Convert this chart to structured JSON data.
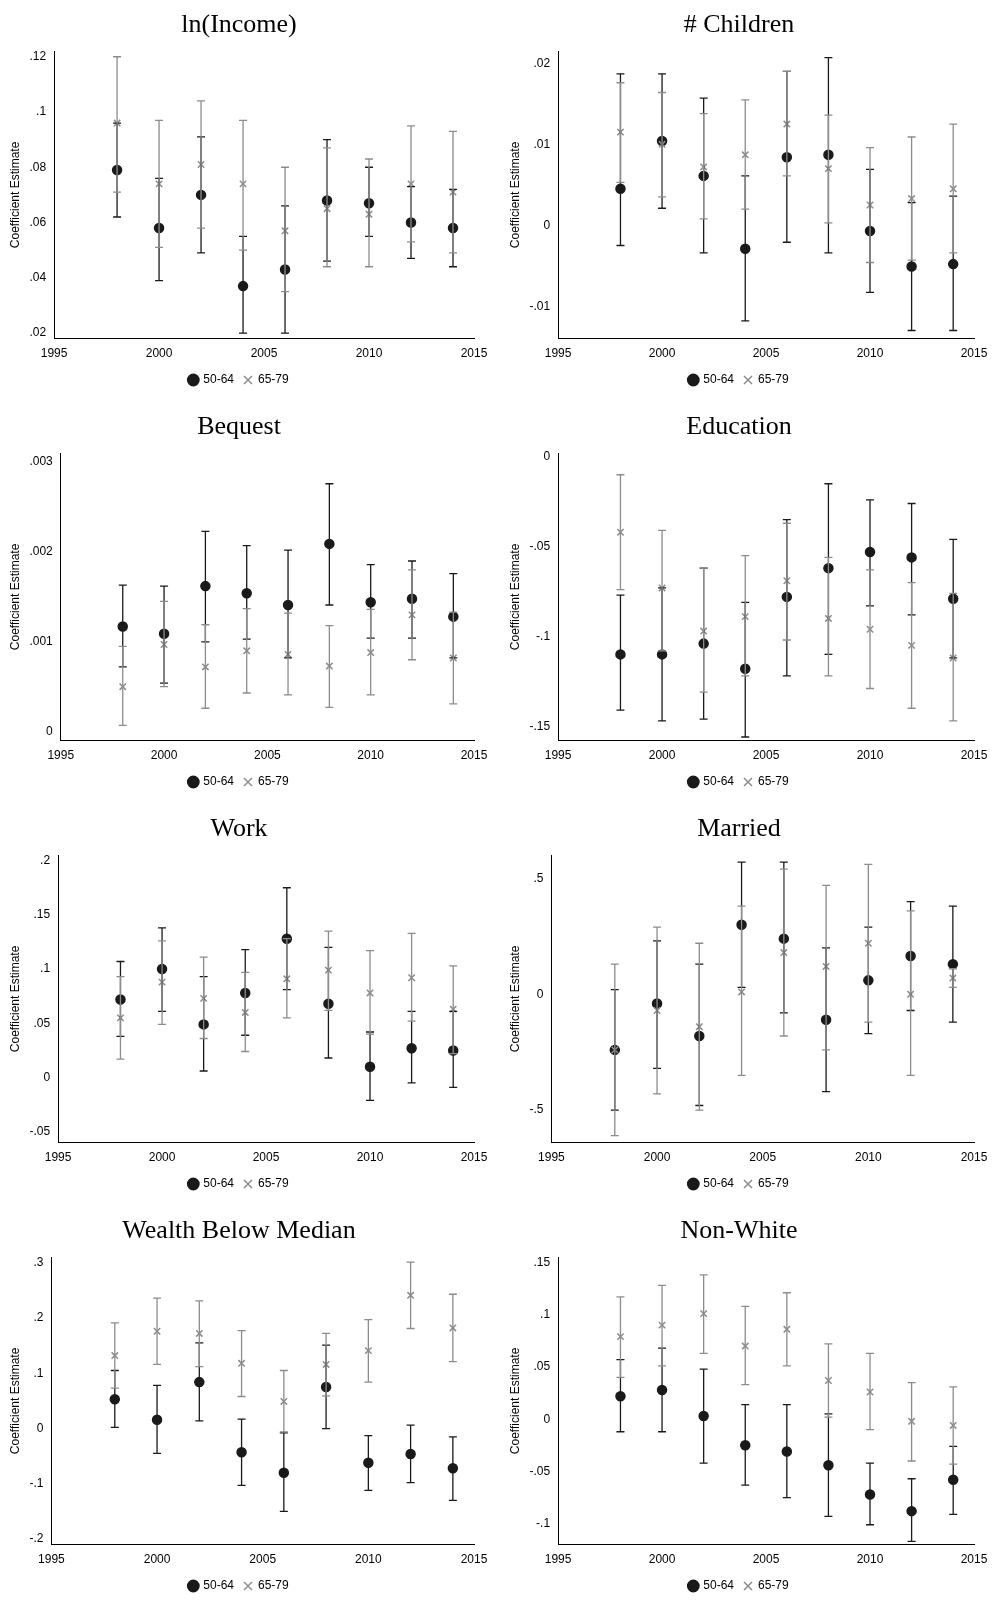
{
  "chart_data": [
    {
      "type": "scatter",
      "title": "ln(Income)",
      "ylabel": "Coefficient Estimate",
      "x": [
        1998,
        2000,
        2002,
        2004,
        2006,
        2008,
        2010,
        2012,
        2014
      ],
      "xlim": [
        1995,
        2015
      ],
      "xticks": [
        1995,
        2000,
        2005,
        2010,
        2015
      ],
      "ylim": [
        0.018,
        0.122
      ],
      "yticks": [
        {
          "value": 0.02,
          "label": ".02"
        },
        {
          "value": 0.04,
          "label": ".04"
        },
        {
          "value": 0.06,
          "label": ".06"
        },
        {
          "value": 0.08,
          "label": ".08"
        },
        {
          "value": 0.1,
          "label": ".1"
        },
        {
          "value": 0.12,
          "label": ".12"
        }
      ],
      "grid": false,
      "legend": "bottom",
      "series": [
        {
          "name": "50-64",
          "color": "#1a1a1a",
          "marker": "circle",
          "values": [
            0.079,
            0.058,
            0.07,
            0.037,
            0.043,
            0.068,
            0.067,
            0.06,
            0.058
          ],
          "errors": [
            [
              0.062,
              0.096
            ],
            [
              0.039,
              0.076
            ],
            [
              0.049,
              0.091
            ],
            [
              0.02,
              0.055
            ],
            [
              0.02,
              0.066
            ],
            [
              0.046,
              0.09
            ],
            [
              0.055,
              0.08
            ],
            [
              0.047,
              0.073
            ],
            [
              0.044,
              0.072
            ]
          ]
        },
        {
          "name": "65-79",
          "color": "#8c8c8c",
          "marker": "cross",
          "values": [
            0.096,
            0.074,
            0.081,
            0.074,
            0.057,
            0.065,
            0.063,
            0.074,
            0.071
          ],
          "errors": [
            [
              0.071,
              0.12
            ],
            [
              0.051,
              0.097
            ],
            [
              0.058,
              0.104
            ],
            [
              0.05,
              0.097
            ],
            [
              0.035,
              0.08
            ],
            [
              0.044,
              0.087
            ],
            [
              0.044,
              0.083
            ],
            [
              0.053,
              0.095
            ],
            [
              0.049,
              0.093
            ]
          ]
        }
      ]
    },
    {
      "type": "scatter",
      "title": "# Children",
      "ylabel": "Coefficient Estimate",
      "x": [
        1998,
        2000,
        2002,
        2004,
        2006,
        2008,
        2010,
        2012,
        2014
      ],
      "xlim": [
        1995,
        2015
      ],
      "xticks": [
        1995,
        2000,
        2005,
        2010,
        2015
      ],
      "ylim": [
        -0.014,
        0.0215
      ],
      "yticks": [
        {
          "value": -0.01,
          "label": "-.01"
        },
        {
          "value": 0,
          "label": "0"
        },
        {
          "value": 0.01,
          "label": ".01"
        },
        {
          "value": 0.02,
          "label": ".02"
        }
      ],
      "grid": false,
      "legend": "bottom",
      "series": [
        {
          "name": "50-64",
          "color": "#1a1a1a",
          "marker": "circle",
          "values": [
            0.0045,
            0.0104,
            0.0061,
            -0.0029,
            0.0084,
            0.0087,
            -0.0007,
            -0.0051,
            -0.0048
          ],
          "errors": [
            [
              -0.0025,
              0.0187
            ],
            [
              0.0021,
              0.0187
            ],
            [
              -0.0034,
              0.0157
            ],
            [
              -0.0118,
              0.0061
            ],
            [
              -0.0021,
              0.019
            ],
            [
              -0.0034,
              0.0207
            ],
            [
              -0.0083,
              0.0069
            ],
            [
              -0.013,
              0.0028
            ],
            [
              -0.013,
              0.0036
            ]
          ]
        },
        {
          "name": "65-79",
          "color": "#8c8c8c",
          "marker": "cross",
          "values": [
            0.0115,
            0.01,
            0.0072,
            0.0087,
            0.0125,
            0.007,
            0.0025,
            0.0033,
            0.0045
          ],
          "errors": [
            [
              0.0053,
              0.0176
            ],
            [
              0.0035,
              0.0164
            ],
            [
              0.0008,
              0.0138
            ],
            [
              0.002,
              0.0155
            ],
            [
              0.0061,
              0.019
            ],
            [
              0.0003,
              0.0136
            ],
            [
              -0.0046,
              0.0096
            ],
            [
              -0.0043,
              0.0109
            ],
            [
              -0.0034,
              0.0125
            ]
          ]
        }
      ]
    },
    {
      "type": "scatter",
      "title": "Bequest",
      "ylabel": "Coefficient Estimate",
      "x": [
        1998,
        2000,
        2002,
        2004,
        2006,
        2008,
        2010,
        2012,
        2014
      ],
      "xlim": [
        1995,
        2015
      ],
      "xticks": [
        1995,
        2000,
        2005,
        2010,
        2015
      ],
      "ylim": [
        -0.0001,
        0.0031
      ],
      "yticks": [
        {
          "value": 0,
          "label": "0"
        },
        {
          "value": 0.001,
          "label": ".001"
        },
        {
          "value": 0.002,
          "label": ".002"
        },
        {
          "value": 0.003,
          "label": ".003"
        }
      ],
      "grid": false,
      "legend": "bottom",
      "series": [
        {
          "name": "50-64",
          "color": "#1a1a1a",
          "marker": "circle",
          "values": [
            0.00117,
            0.00109,
            0.00162,
            0.00154,
            0.00141,
            0.00209,
            0.00144,
            0.00148,
            0.00128
          ],
          "errors": [
            [
              0.00072,
              0.00163
            ],
            [
              0.00054,
              0.00162
            ],
            [
              0.001,
              0.00223
            ],
            [
              0.00103,
              0.00207
            ],
            [
              0.00082,
              0.00202
            ],
            [
              0.00141,
              0.00276
            ],
            [
              0.00104,
              0.00186
            ],
            [
              0.00104,
              0.0019
            ],
            [
              0.00082,
              0.00176
            ]
          ]
        },
        {
          "name": "65-79",
          "color": "#8c8c8c",
          "marker": "cross",
          "values": [
            0.0005,
            0.00097,
            0.00072,
            0.0009,
            0.00086,
            0.00073,
            0.00088,
            0.0013,
            0.00082
          ],
          "errors": [
            [
              7e-05,
              0.00095
            ],
            [
              0.0005,
              0.00145
            ],
            [
              0.00026,
              0.00119
            ],
            [
              0.00043,
              0.00137
            ],
            [
              0.00041,
              0.00132
            ],
            [
              0.00027,
              0.00118
            ],
            [
              0.00041,
              0.00136
            ],
            [
              0.0008,
              0.0018
            ],
            [
              0.00031,
              0.00133
            ]
          ]
        }
      ]
    },
    {
      "type": "scatter",
      "title": "Education",
      "ylabel": "Coefficient Estimate",
      "x": [
        1998,
        2000,
        2002,
        2004,
        2006,
        2008,
        2010,
        2012,
        2014
      ],
      "xlim": [
        1995,
        2015
      ],
      "xticks": [
        1995,
        2000,
        2005,
        2010,
        2015
      ],
      "ylim": [
        -0.158,
        0.002
      ],
      "yticks": [
        {
          "value": -0.15,
          "label": "-.15"
        },
        {
          "value": -0.1,
          "label": "-.1"
        },
        {
          "value": -0.05,
          "label": "-.05"
        },
        {
          "value": 0,
          "label": "0"
        }
      ],
      "grid": false,
      "legend": "bottom",
      "series": [
        {
          "name": "50-64",
          "color": "#1a1a1a",
          "marker": "circle",
          "values": [
            -0.11,
            -0.11,
            -0.104,
            -0.118,
            -0.078,
            -0.062,
            -0.053,
            -0.056,
            -0.079
          ],
          "errors": [
            [
              -0.141,
              -0.077
            ],
            [
              -0.147,
              -0.073
            ],
            [
              -0.146,
              -0.062
            ],
            [
              -0.156,
              -0.081
            ],
            [
              -0.122,
              -0.035
            ],
            [
              -0.11,
              -0.015
            ],
            [
              -0.083,
              -0.024
            ],
            [
              -0.088,
              -0.026
            ],
            [
              -0.112,
              -0.046
            ]
          ]
        },
        {
          "name": "65-79",
          "color": "#8c8c8c",
          "marker": "cross",
          "values": [
            -0.042,
            -0.073,
            -0.097,
            -0.089,
            -0.069,
            -0.09,
            -0.096,
            -0.105,
            -0.112
          ],
          "errors": [
            [
              -0.074,
              -0.01
            ],
            [
              -0.108,
              -0.041
            ],
            [
              -0.131,
              -0.062
            ],
            [
              -0.122,
              -0.055
            ],
            [
              -0.102,
              -0.037
            ],
            [
              -0.122,
              -0.056
            ],
            [
              -0.129,
              -0.063
            ],
            [
              -0.14,
              -0.07
            ],
            [
              -0.147,
              -0.076
            ]
          ]
        }
      ]
    },
    {
      "type": "scatter",
      "title": "Work",
      "ylabel": "Coefficient Estimate",
      "x": [
        1998,
        2000,
        2002,
        2004,
        2006,
        2008,
        2010,
        2012,
        2014
      ],
      "xlim": [
        1995,
        2015
      ],
      "xticks": [
        1995,
        2000,
        2005,
        2010,
        2015
      ],
      "ylim": [
        -0.06,
        0.205
      ],
      "yticks": [
        {
          "value": -0.05,
          "label": "-.05"
        },
        {
          "value": 0,
          "label": "0"
        },
        {
          "value": 0.05,
          "label": ".05"
        },
        {
          "value": 0.1,
          "label": ".1"
        },
        {
          "value": 0.15,
          "label": ".15"
        },
        {
          "value": 0.2,
          "label": ".2"
        }
      ],
      "grid": false,
      "legend": "bottom",
      "series": [
        {
          "name": "50-64",
          "color": "#1a1a1a",
          "marker": "circle",
          "values": [
            0.072,
            0.1,
            0.049,
            0.078,
            0.128,
            0.068,
            0.01,
            0.027,
            0.025
          ],
          "errors": [
            [
              0.038,
              0.107
            ],
            [
              0.061,
              0.138
            ],
            [
              0.006,
              0.093
            ],
            [
              0.039,
              0.118
            ],
            [
              0.081,
              0.175
            ],
            [
              0.018,
              0.12
            ],
            [
              -0.021,
              0.042
            ],
            [
              -0.005,
              0.061
            ],
            [
              -0.009,
              0.061
            ]
          ]
        },
        {
          "name": "65-79",
          "color": "#8c8c8c",
          "marker": "cross",
          "values": [
            0.055,
            0.088,
            0.073,
            0.06,
            0.091,
            0.099,
            0.078,
            0.092,
            0.063
          ],
          "errors": [
            [
              0.017,
              0.093
            ],
            [
              0.049,
              0.126
            ],
            [
              0.036,
              0.111
            ],
            [
              0.024,
              0.097
            ],
            [
              0.055,
              0.128
            ],
            [
              0.062,
              0.135
            ],
            [
              0.04,
              0.117
            ],
            [
              0.052,
              0.133
            ],
            [
              0.022,
              0.103
            ]
          ]
        }
      ]
    },
    {
      "type": "scatter",
      "title": "Married",
      "ylabel": "Coefficient Estimate",
      "x": [
        1998,
        2000,
        2002,
        2004,
        2006,
        2008,
        2010,
        2012,
        2014
      ],
      "xlim": [
        1995,
        2015
      ],
      "xticks": [
        1995,
        2000,
        2005,
        2010,
        2015
      ],
      "ylim": [
        -0.64,
        0.6
      ],
      "yticks": [
        {
          "value": -0.5,
          "label": "-.5"
        },
        {
          "value": 0,
          "label": "0"
        },
        {
          "value": 0.5,
          "label": ".5"
        }
      ],
      "grid": false,
      "legend": "bottom",
      "series": [
        {
          "name": "50-64",
          "color": "#1a1a1a",
          "marker": "circle",
          "values": [
            -0.24,
            -0.04,
            -0.18,
            0.3,
            0.24,
            -0.11,
            0.06,
            0.165,
            0.13
          ],
          "errors": [
            [
              -0.5,
              0.02
            ],
            [
              -0.32,
              0.23
            ],
            [
              -0.48,
              0.13
            ],
            [
              0.03,
              0.57
            ],
            [
              -0.08,
              0.57
            ],
            [
              -0.42,
              0.2
            ],
            [
              -0.17,
              0.29
            ],
            [
              -0.07,
              0.4
            ],
            [
              -0.12,
              0.38
            ]
          ]
        },
        {
          "name": "65-79",
          "color": "#8c8c8c",
          "marker": "cross",
          "values": [
            -0.24,
            -0.07,
            -0.14,
            0.01,
            0.18,
            0.12,
            0.22,
            0.0,
            0.07
          ],
          "errors": [
            [
              -0.61,
              0.13
            ],
            [
              -0.43,
              0.29
            ],
            [
              -0.5,
              0.22
            ],
            [
              -0.35,
              0.38
            ],
            [
              -0.18,
              0.54
            ],
            [
              -0.24,
              0.47
            ],
            [
              -0.12,
              0.56
            ],
            [
              -0.35,
              0.36
            ],
            [
              0.03,
              0.11
            ]
          ]
        }
      ]
    },
    {
      "type": "scatter",
      "title": "Wealth Below Median",
      "ylabel": "Coefficient Estimate",
      "x": [
        1998,
        2000,
        2002,
        2004,
        2006,
        2008,
        2010,
        2012,
        2014
      ],
      "xlim": [
        1995,
        2015
      ],
      "xticks": [
        1995,
        2000,
        2005,
        2010,
        2015
      ],
      "ylim": [
        -0.21,
        0.31
      ],
      "yticks": [
        {
          "value": -0.2,
          "label": "-.2"
        },
        {
          "value": -0.1,
          "label": "-.1"
        },
        {
          "value": 0,
          "label": "0"
        },
        {
          "value": 0.1,
          "label": ".1"
        },
        {
          "value": 0.2,
          "label": ".2"
        },
        {
          "value": 0.3,
          "label": ".3"
        }
      ],
      "grid": false,
      "legend": "bottom",
      "series": [
        {
          "name": "50-64",
          "color": "#1a1a1a",
          "marker": "circle",
          "values": [
            0.053,
            0.016,
            0.084,
            -0.043,
            -0.08,
            0.075,
            -0.062,
            -0.046,
            -0.072
          ],
          "errors": [
            [
              0.002,
              0.105
            ],
            [
              -0.045,
              0.078
            ],
            [
              0.014,
              0.155
            ],
            [
              -0.103,
              0.017
            ],
            [
              -0.15,
              -0.008
            ],
            [
              0.0,
              0.151
            ],
            [
              -0.112,
              -0.013
            ],
            [
              -0.098,
              0.006
            ],
            [
              -0.13,
              -0.015
            ]
          ]
        },
        {
          "name": "65-79",
          "color": "#8c8c8c",
          "marker": "cross",
          "values": [
            0.132,
            0.176,
            0.172,
            0.118,
            0.049,
            0.116,
            0.141,
            0.241,
            0.182
          ],
          "errors": [
            [
              0.073,
              0.191
            ],
            [
              0.116,
              0.236
            ],
            [
              0.112,
              0.231
            ],
            [
              0.058,
              0.177
            ],
            [
              -0.006,
              0.105
            ],
            [
              0.059,
              0.172
            ],
            [
              0.084,
              0.197
            ],
            [
              0.181,
              0.301
            ],
            [
              0.121,
              0.243
            ]
          ]
        }
      ]
    },
    {
      "type": "scatter",
      "title": "Non-White",
      "ylabel": "Coefficient Estimate",
      "x": [
        1998,
        2000,
        2002,
        2004,
        2006,
        2008,
        2010,
        2012,
        2014
      ],
      "xlim": [
        1995,
        2015
      ],
      "xticks": [
        1995,
        2000,
        2005,
        2010,
        2015
      ],
      "ylim": [
        -0.12,
        0.155
      ],
      "yticks": [
        {
          "value": -0.1,
          "label": "-.1"
        },
        {
          "value": -0.05,
          "label": "-.05"
        },
        {
          "value": 0,
          "label": "0"
        },
        {
          "value": 0.05,
          "label": ".05"
        },
        {
          "value": 0.1,
          "label": ".1"
        },
        {
          "value": 0.15,
          "label": ".15"
        }
      ],
      "grid": false,
      "legend": "bottom",
      "series": [
        {
          "name": "50-64",
          "color": "#1a1a1a",
          "marker": "circle",
          "values": [
            0.022,
            0.028,
            0.003,
            -0.025,
            -0.031,
            -0.044,
            -0.072,
            -0.088,
            -0.058
          ],
          "errors": [
            [
              -0.012,
              0.057
            ],
            [
              -0.012,
              0.068
            ],
            [
              -0.042,
              0.048
            ],
            [
              -0.063,
              0.014
            ],
            [
              -0.075,
              0.014
            ],
            [
              -0.093,
              0.005
            ],
            [
              -0.101,
              -0.042
            ],
            [
              -0.117,
              -0.057
            ],
            [
              -0.091,
              -0.026
            ]
          ]
        },
        {
          "name": "65-79",
          "color": "#8c8c8c",
          "marker": "cross",
          "values": [
            0.079,
            0.09,
            0.101,
            0.07,
            0.086,
            0.037,
            0.026,
            -0.002,
            -0.006
          ],
          "errors": [
            [
              0.04,
              0.117
            ],
            [
              0.051,
              0.128
            ],
            [
              0.063,
              0.138
            ],
            [
              0.033,
              0.108
            ],
            [
              0.051,
              0.121
            ],
            [
              0.002,
              0.072
            ],
            [
              -0.01,
              0.063
            ],
            [
              -0.04,
              0.035
            ],
            [
              -0.043,
              0.031
            ]
          ]
        }
      ]
    }
  ]
}
